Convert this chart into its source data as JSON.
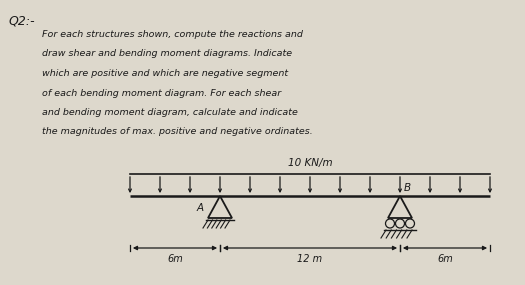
{
  "title": "Q2:-",
  "text_lines": [
    "For each structures shown, compute the reactions and",
    "draw shear and bending moment diagrams. Indicate",
    "which are positive and which are negative segment",
    "of each bending moment diagram. For each shear",
    "and bending moment diagram, calculate and indicate",
    "the magnitudes of max. positive and negative ordinates."
  ],
  "load_label": "10 KN/m",
  "label_A": "A",
  "label_B": "B",
  "dim_left": "6m",
  "dim_mid": "12 m",
  "dim_right": "6m",
  "bg_color": "#ddd8cc",
  "text_color": "#1a1a1a",
  "beam_color": "#1a1a1a",
  "load_color": "#1a1a1a",
  "title_fontsize": 9.0,
  "text_fontsize": 6.8
}
